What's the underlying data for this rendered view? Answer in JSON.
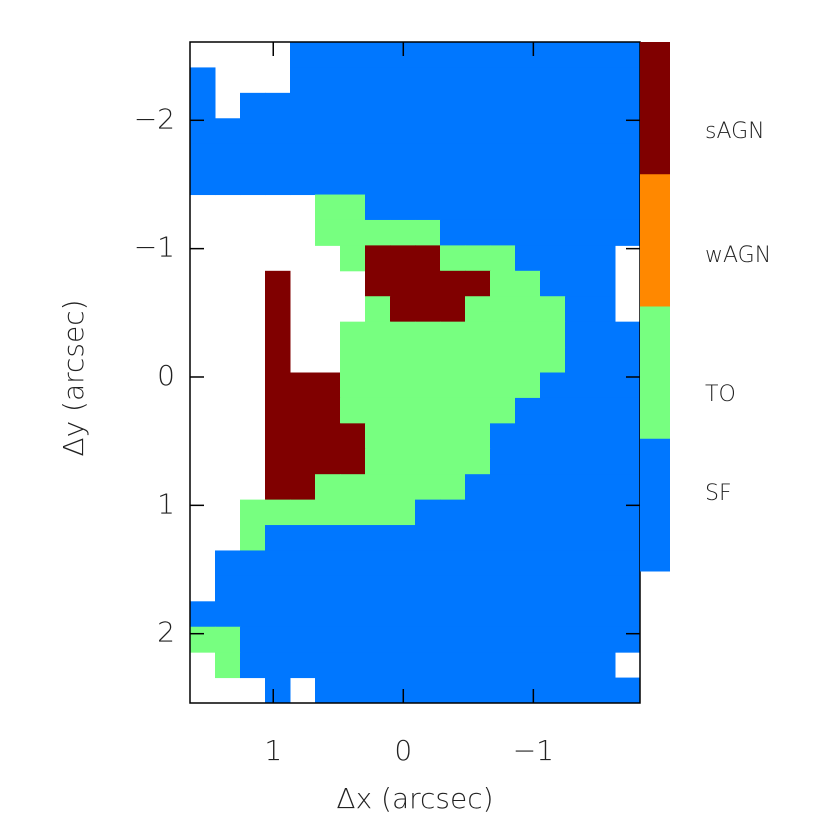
{
  "chart_data": {
    "type": "classmap",
    "xlabel": "Δx (arcsec)",
    "ylabel": "Δy (arcsec)",
    "xlim": [
      1.64,
      -1.82
    ],
    "ylim": [
      -2.61,
      2.54
    ],
    "xticks": [
      1,
      0,
      {
        "value": -1,
        "label": "−1"
      }
    ],
    "yticks": [
      {
        "value": -2,
        "label": "−2"
      },
      {
        "value": -1,
        "label": "−1"
      },
      0,
      1,
      2
    ],
    "classes": [
      "sAGN",
      "wAGN",
      "TO",
      "SF"
    ],
    "colors": [
      "#800000",
      "#ff8800",
      "#77ff80",
      "#0077ff"
    ],
    "grid": [
      [
        null,
        null,
        null,
        null,
        3,
        3,
        3,
        3,
        3,
        3,
        3,
        3,
        3,
        3,
        3,
        3,
        3,
        3
      ],
      [
        3,
        null,
        null,
        null,
        3,
        3,
        3,
        3,
        3,
        3,
        3,
        3,
        3,
        3,
        3,
        3,
        3,
        3
      ],
      [
        3,
        null,
        3,
        3,
        3,
        3,
        3,
        3,
        3,
        3,
        3,
        3,
        3,
        3,
        3,
        3,
        3,
        3
      ],
      [
        3,
        3,
        3,
        3,
        3,
        3,
        3,
        3,
        3,
        3,
        3,
        3,
        3,
        3,
        3,
        3,
        3,
        3
      ],
      [
        3,
        3,
        3,
        3,
        3,
        3,
        3,
        3,
        3,
        3,
        3,
        3,
        3,
        3,
        3,
        3,
        3,
        3
      ],
      [
        3,
        3,
        3,
        3,
        3,
        3,
        3,
        3,
        3,
        3,
        3,
        3,
        3,
        3,
        3,
        3,
        3,
        3
      ],
      [
        null,
        null,
        null,
        null,
        null,
        2,
        2,
        3,
        3,
        3,
        3,
        3,
        3,
        3,
        3,
        3,
        3,
        3
      ],
      [
        null,
        null,
        null,
        null,
        null,
        2,
        2,
        2,
        2,
        2,
        3,
        3,
        3,
        3,
        3,
        3,
        3,
        3
      ],
      [
        null,
        null,
        null,
        null,
        null,
        null,
        2,
        0,
        0,
        0,
        2,
        2,
        2,
        3,
        3,
        3,
        3,
        null
      ],
      [
        null,
        null,
        null,
        0,
        null,
        null,
        null,
        0,
        0,
        0,
        0,
        0,
        2,
        2,
        3,
        3,
        3,
        null
      ],
      [
        null,
        null,
        null,
        0,
        null,
        null,
        null,
        2,
        0,
        0,
        0,
        2,
        2,
        2,
        2,
        3,
        3,
        null
      ],
      [
        null,
        null,
        null,
        0,
        null,
        null,
        2,
        2,
        2,
        2,
        2,
        2,
        2,
        2,
        2,
        3,
        3,
        3
      ],
      [
        null,
        null,
        null,
        0,
        null,
        null,
        2,
        2,
        2,
        2,
        2,
        2,
        2,
        2,
        2,
        3,
        3,
        3
      ],
      [
        null,
        null,
        null,
        0,
        0,
        0,
        2,
        2,
        2,
        2,
        2,
        2,
        2,
        2,
        3,
        3,
        3,
        3
      ],
      [
        null,
        null,
        null,
        0,
        0,
        0,
        2,
        2,
        2,
        2,
        2,
        2,
        2,
        3,
        3,
        3,
        3,
        3
      ],
      [
        null,
        null,
        null,
        0,
        0,
        0,
        0,
        2,
        2,
        2,
        2,
        2,
        3,
        3,
        3,
        3,
        3,
        3
      ],
      [
        null,
        null,
        null,
        0,
        0,
        0,
        0,
        2,
        2,
        2,
        2,
        2,
        3,
        3,
        3,
        3,
        3,
        3
      ],
      [
        null,
        null,
        null,
        0,
        0,
        2,
        2,
        2,
        2,
        2,
        2,
        3,
        3,
        3,
        3,
        3,
        3,
        3
      ],
      [
        null,
        null,
        2,
        2,
        2,
        2,
        2,
        2,
        2,
        3,
        3,
        3,
        3,
        3,
        3,
        3,
        3,
        3
      ],
      [
        null,
        null,
        2,
        3,
        3,
        3,
        3,
        3,
        3,
        3,
        3,
        3,
        3,
        3,
        3,
        3,
        3,
        3
      ],
      [
        null,
        3,
        3,
        3,
        3,
        3,
        3,
        3,
        3,
        3,
        3,
        3,
        3,
        3,
        3,
        3,
        3,
        3
      ],
      [
        null,
        3,
        3,
        3,
        3,
        3,
        3,
        3,
        3,
        3,
        3,
        3,
        3,
        3,
        3,
        3,
        3,
        3
      ],
      [
        3,
        3,
        3,
        3,
        3,
        3,
        3,
        3,
        3,
        3,
        3,
        3,
        3,
        3,
        3,
        3,
        3,
        3
      ],
      [
        2,
        2,
        3,
        3,
        3,
        3,
        3,
        3,
        3,
        3,
        3,
        3,
        3,
        3,
        3,
        3,
        3,
        3
      ],
      [
        null,
        2,
        3,
        3,
        3,
        3,
        3,
        3,
        3,
        3,
        3,
        3,
        3,
        3,
        3,
        3,
        3,
        null
      ],
      [
        null,
        null,
        null,
        3,
        null,
        3,
        3,
        3,
        3,
        3,
        3,
        3,
        3,
        3,
        3,
        3,
        3,
        3
      ]
    ]
  }
}
